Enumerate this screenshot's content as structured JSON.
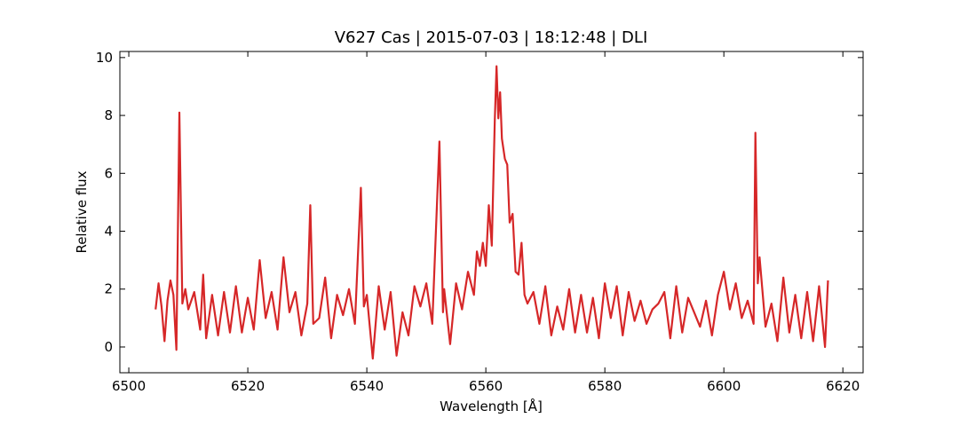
{
  "chart_data": {
    "type": "line",
    "title": "V627 Cas | 2015-07-03 | 18:12:48 | DLI",
    "xlabel": "Wavelength [Å]",
    "ylabel": "Relative flux",
    "color": "#d62728",
    "x": [
      6504.5,
      6505,
      6505.5,
      6506,
      6506.5,
      6507,
      6507.5,
      6508,
      6508.5,
      6509,
      6509.5,
      6510,
      6511,
      6512,
      6512.5,
      6513,
      6514,
      6515,
      6516,
      6517,
      6518,
      6519,
      6520,
      6521,
      6522,
      6523,
      6524,
      6525,
      6526,
      6527,
      6528,
      6529,
      6530,
      6530.5,
      6531,
      6532,
      6533,
      6534,
      6535,
      6536,
      6537,
      6538,
      6539,
      6539.5,
      6540,
      6541,
      6542,
      6543,
      6544,
      6545,
      6546,
      6547,
      6548,
      6549,
      6550,
      6551,
      6552.2,
      6552.8,
      6553,
      6554,
      6555,
      6556,
      6557,
      6558,
      6558.5,
      6559,
      6559.5,
      6560,
      6560.5,
      6561,
      6561.5,
      6561.8,
      6562.1,
      6562.4,
      6562.7,
      6563.2,
      6563.6,
      6564,
      6564.5,
      6565,
      6565.5,
      6566,
      6566.5,
      6567,
      6568,
      6569,
      6570,
      6571,
      6572,
      6573,
      6574,
      6575,
      6576,
      6577,
      6578,
      6579,
      6580,
      6581,
      6582,
      6583,
      6584,
      6585,
      6586,
      6587,
      6588,
      6589,
      6590,
      6591,
      6592,
      6593,
      6594,
      6595,
      6596,
      6597,
      6598,
      6599,
      6600,
      6601,
      6602,
      6603,
      6604,
      6605,
      6605.3,
      6605.7,
      6606,
      6607,
      6608,
      6609,
      6610,
      6611,
      6612,
      6613,
      6614,
      6615,
      6616,
      6617,
      6617.5
    ],
    "values": [
      1.3,
      2.2,
      1.4,
      0.2,
      1.6,
      2.3,
      1.8,
      -0.1,
      8.1,
      1.5,
      2.0,
      1.3,
      1.9,
      0.6,
      2.5,
      0.3,
      1.8,
      0.4,
      1.9,
      0.5,
      2.1,
      0.5,
      1.7,
      0.6,
      3.0,
      1.0,
      1.9,
      0.6,
      3.1,
      1.2,
      1.9,
      0.4,
      1.5,
      4.9,
      0.8,
      1.0,
      2.4,
      0.3,
      1.8,
      1.1,
      2.0,
      0.8,
      5.5,
      1.4,
      1.8,
      -0.4,
      2.1,
      0.6,
      1.9,
      -0.3,
      1.2,
      0.4,
      2.1,
      1.4,
      2.2,
      0.8,
      7.1,
      1.2,
      2.0,
      0.1,
      2.2,
      1.3,
      2.6,
      1.8,
      3.3,
      2.8,
      3.6,
      2.8,
      4.9,
      3.5,
      7.8,
      9.7,
      7.9,
      8.8,
      7.2,
      6.5,
      6.3,
      4.3,
      4.6,
      2.6,
      2.5,
      3.6,
      1.8,
      1.5,
      1.9,
      0.8,
      2.1,
      0.4,
      1.4,
      0.6,
      2.0,
      0.5,
      1.8,
      0.5,
      1.7,
      0.3,
      2.2,
      1.0,
      2.1,
      0.4,
      1.9,
      0.9,
      1.6,
      0.8,
      1.3,
      1.5,
      1.9,
      0.3,
      2.1,
      0.5,
      1.7,
      1.2,
      0.7,
      1.6,
      0.4,
      1.8,
      2.6,
      1.3,
      2.2,
      1.0,
      1.6,
      0.8,
      7.4,
      2.2,
      3.1,
      0.7,
      1.5,
      0.2,
      2.4,
      0.5,
      1.8,
      0.3,
      1.9,
      0.2,
      2.1,
      0.0,
      2.3
    ],
    "xlim": [
      6498.5,
      6623.4
    ],
    "ylim": [
      -0.89,
      10.21
    ],
    "xticks": [
      6500,
      6520,
      6540,
      6560,
      6580,
      6600,
      6620
    ],
    "yticks": [
      0,
      2,
      4,
      6,
      8,
      10
    ]
  }
}
